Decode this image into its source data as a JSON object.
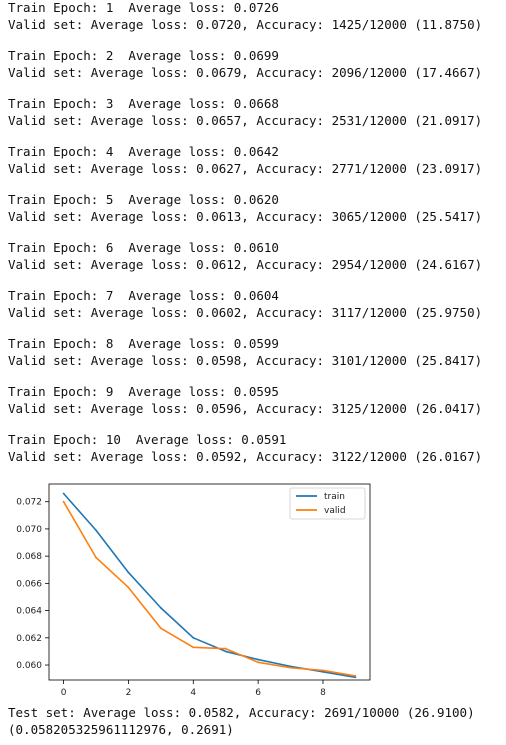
{
  "epochs": [
    {
      "train": "Train Epoch: 1  Average loss: 0.0726",
      "valid": "Valid set: Average loss: 0.0720, Accuracy: 1425/12000 (11.8750)"
    },
    {
      "train": "Train Epoch: 2  Average loss: 0.0699",
      "valid": "Valid set: Average loss: 0.0679, Accuracy: 2096/12000 (17.4667)"
    },
    {
      "train": "Train Epoch: 3  Average loss: 0.0668",
      "valid": "Valid set: Average loss: 0.0657, Accuracy: 2531/12000 (21.0917)"
    },
    {
      "train": "Train Epoch: 4  Average loss: 0.0642",
      "valid": "Valid set: Average loss: 0.0627, Accuracy: 2771/12000 (23.0917)"
    },
    {
      "train": "Train Epoch: 5  Average loss: 0.0620",
      "valid": "Valid set: Average loss: 0.0613, Accuracy: 3065/12000 (25.5417)"
    },
    {
      "train": "Train Epoch: 6  Average loss: 0.0610",
      "valid": "Valid set: Average loss: 0.0612, Accuracy: 2954/12000 (24.6167)"
    },
    {
      "train": "Train Epoch: 7  Average loss: 0.0604",
      "valid": "Valid set: Average loss: 0.0602, Accuracy: 3117/12000 (25.9750)"
    },
    {
      "train": "Train Epoch: 8  Average loss: 0.0599",
      "valid": "Valid set: Average loss: 0.0598, Accuracy: 3101/12000 (25.8417)"
    },
    {
      "train": "Train Epoch: 9  Average loss: 0.0595",
      "valid": "Valid set: Average loss: 0.0596, Accuracy: 3125/12000 (26.0417)"
    },
    {
      "train": "Train Epoch: 10  Average loss: 0.0591",
      "valid": "Valid set: Average loss: 0.0592, Accuracy: 3122/12000 (26.0167)"
    }
  ],
  "test": {
    "line1": "Test set: Average loss: 0.0582, Accuracy: 2691/10000 (26.9100)",
    "line2": "(0.058205325961112976, 0.2691)"
  },
  "chart_data": {
    "type": "line",
    "title": "",
    "xlabel": "",
    "ylabel": "",
    "x": [
      0,
      1,
      2,
      3,
      4,
      5,
      6,
      7,
      8,
      9
    ],
    "xlim": [
      -0.45,
      9.45
    ],
    "ylim": [
      0.0589,
      0.0733
    ],
    "xticks": [
      0,
      2,
      4,
      6,
      8
    ],
    "yticks": [
      0.06,
      0.062,
      0.064,
      0.066,
      0.068,
      0.07,
      0.072
    ],
    "ytick_labels": [
      "0.060",
      "0.062",
      "0.064",
      "0.066",
      "0.068",
      "0.070",
      "0.072"
    ],
    "grid": false,
    "legend": "top-right",
    "series": [
      {
        "name": "train",
        "color": "#1f77b4",
        "values": [
          0.0726,
          0.0699,
          0.0668,
          0.0642,
          0.062,
          0.061,
          0.0604,
          0.0599,
          0.0595,
          0.0591
        ]
      },
      {
        "name": "valid",
        "color": "#ff7f0e",
        "values": [
          0.072,
          0.0679,
          0.0657,
          0.0627,
          0.0613,
          0.0612,
          0.0602,
          0.0598,
          0.0596,
          0.0592
        ]
      }
    ]
  }
}
